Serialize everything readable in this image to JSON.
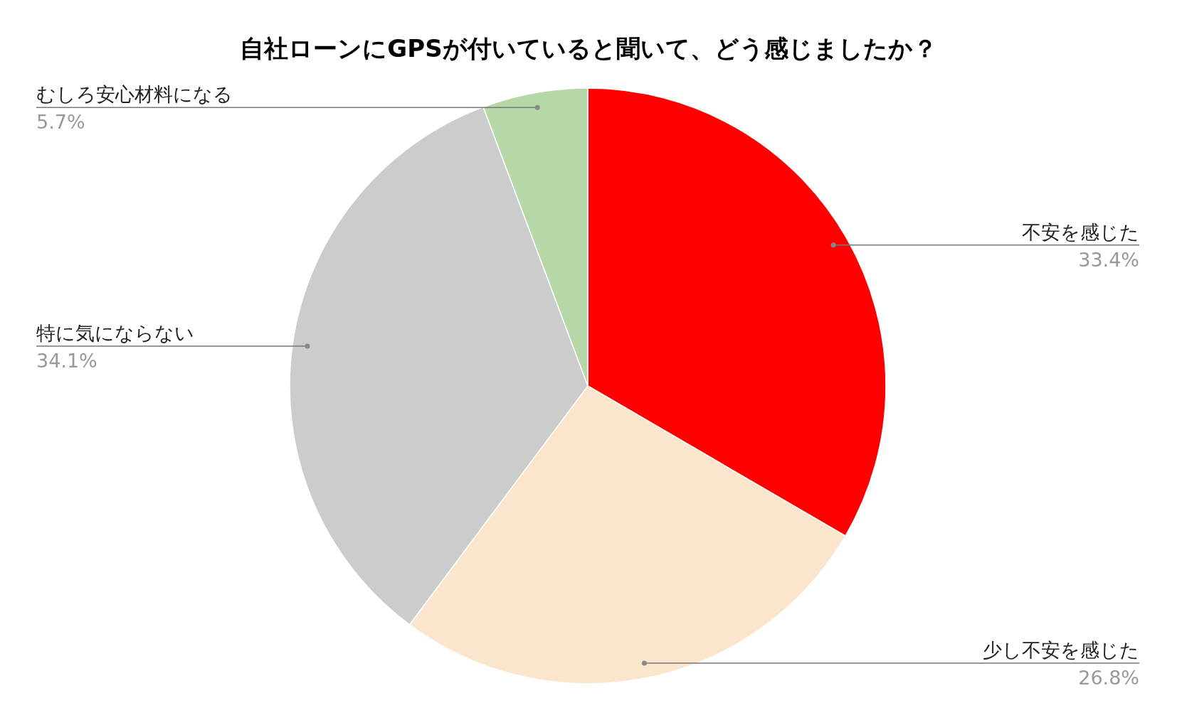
{
  "chart_data": {
    "type": "pie",
    "title": "自社ローンにGPSが付いていると聞いて、どう感じましたか？",
    "categories": [
      "不安を感じた",
      "少し不安を感じた",
      "特に気にならない",
      "むしろ安心材料になる"
    ],
    "values": [
      33.4,
      26.8,
      34.1,
      5.7
    ],
    "value_labels": [
      "33.4%",
      "26.8%",
      "34.1%",
      "5.7%"
    ],
    "colors": [
      "#ff0000",
      "#fce5cd",
      "#cccccc",
      "#b6d7a8"
    ]
  }
}
